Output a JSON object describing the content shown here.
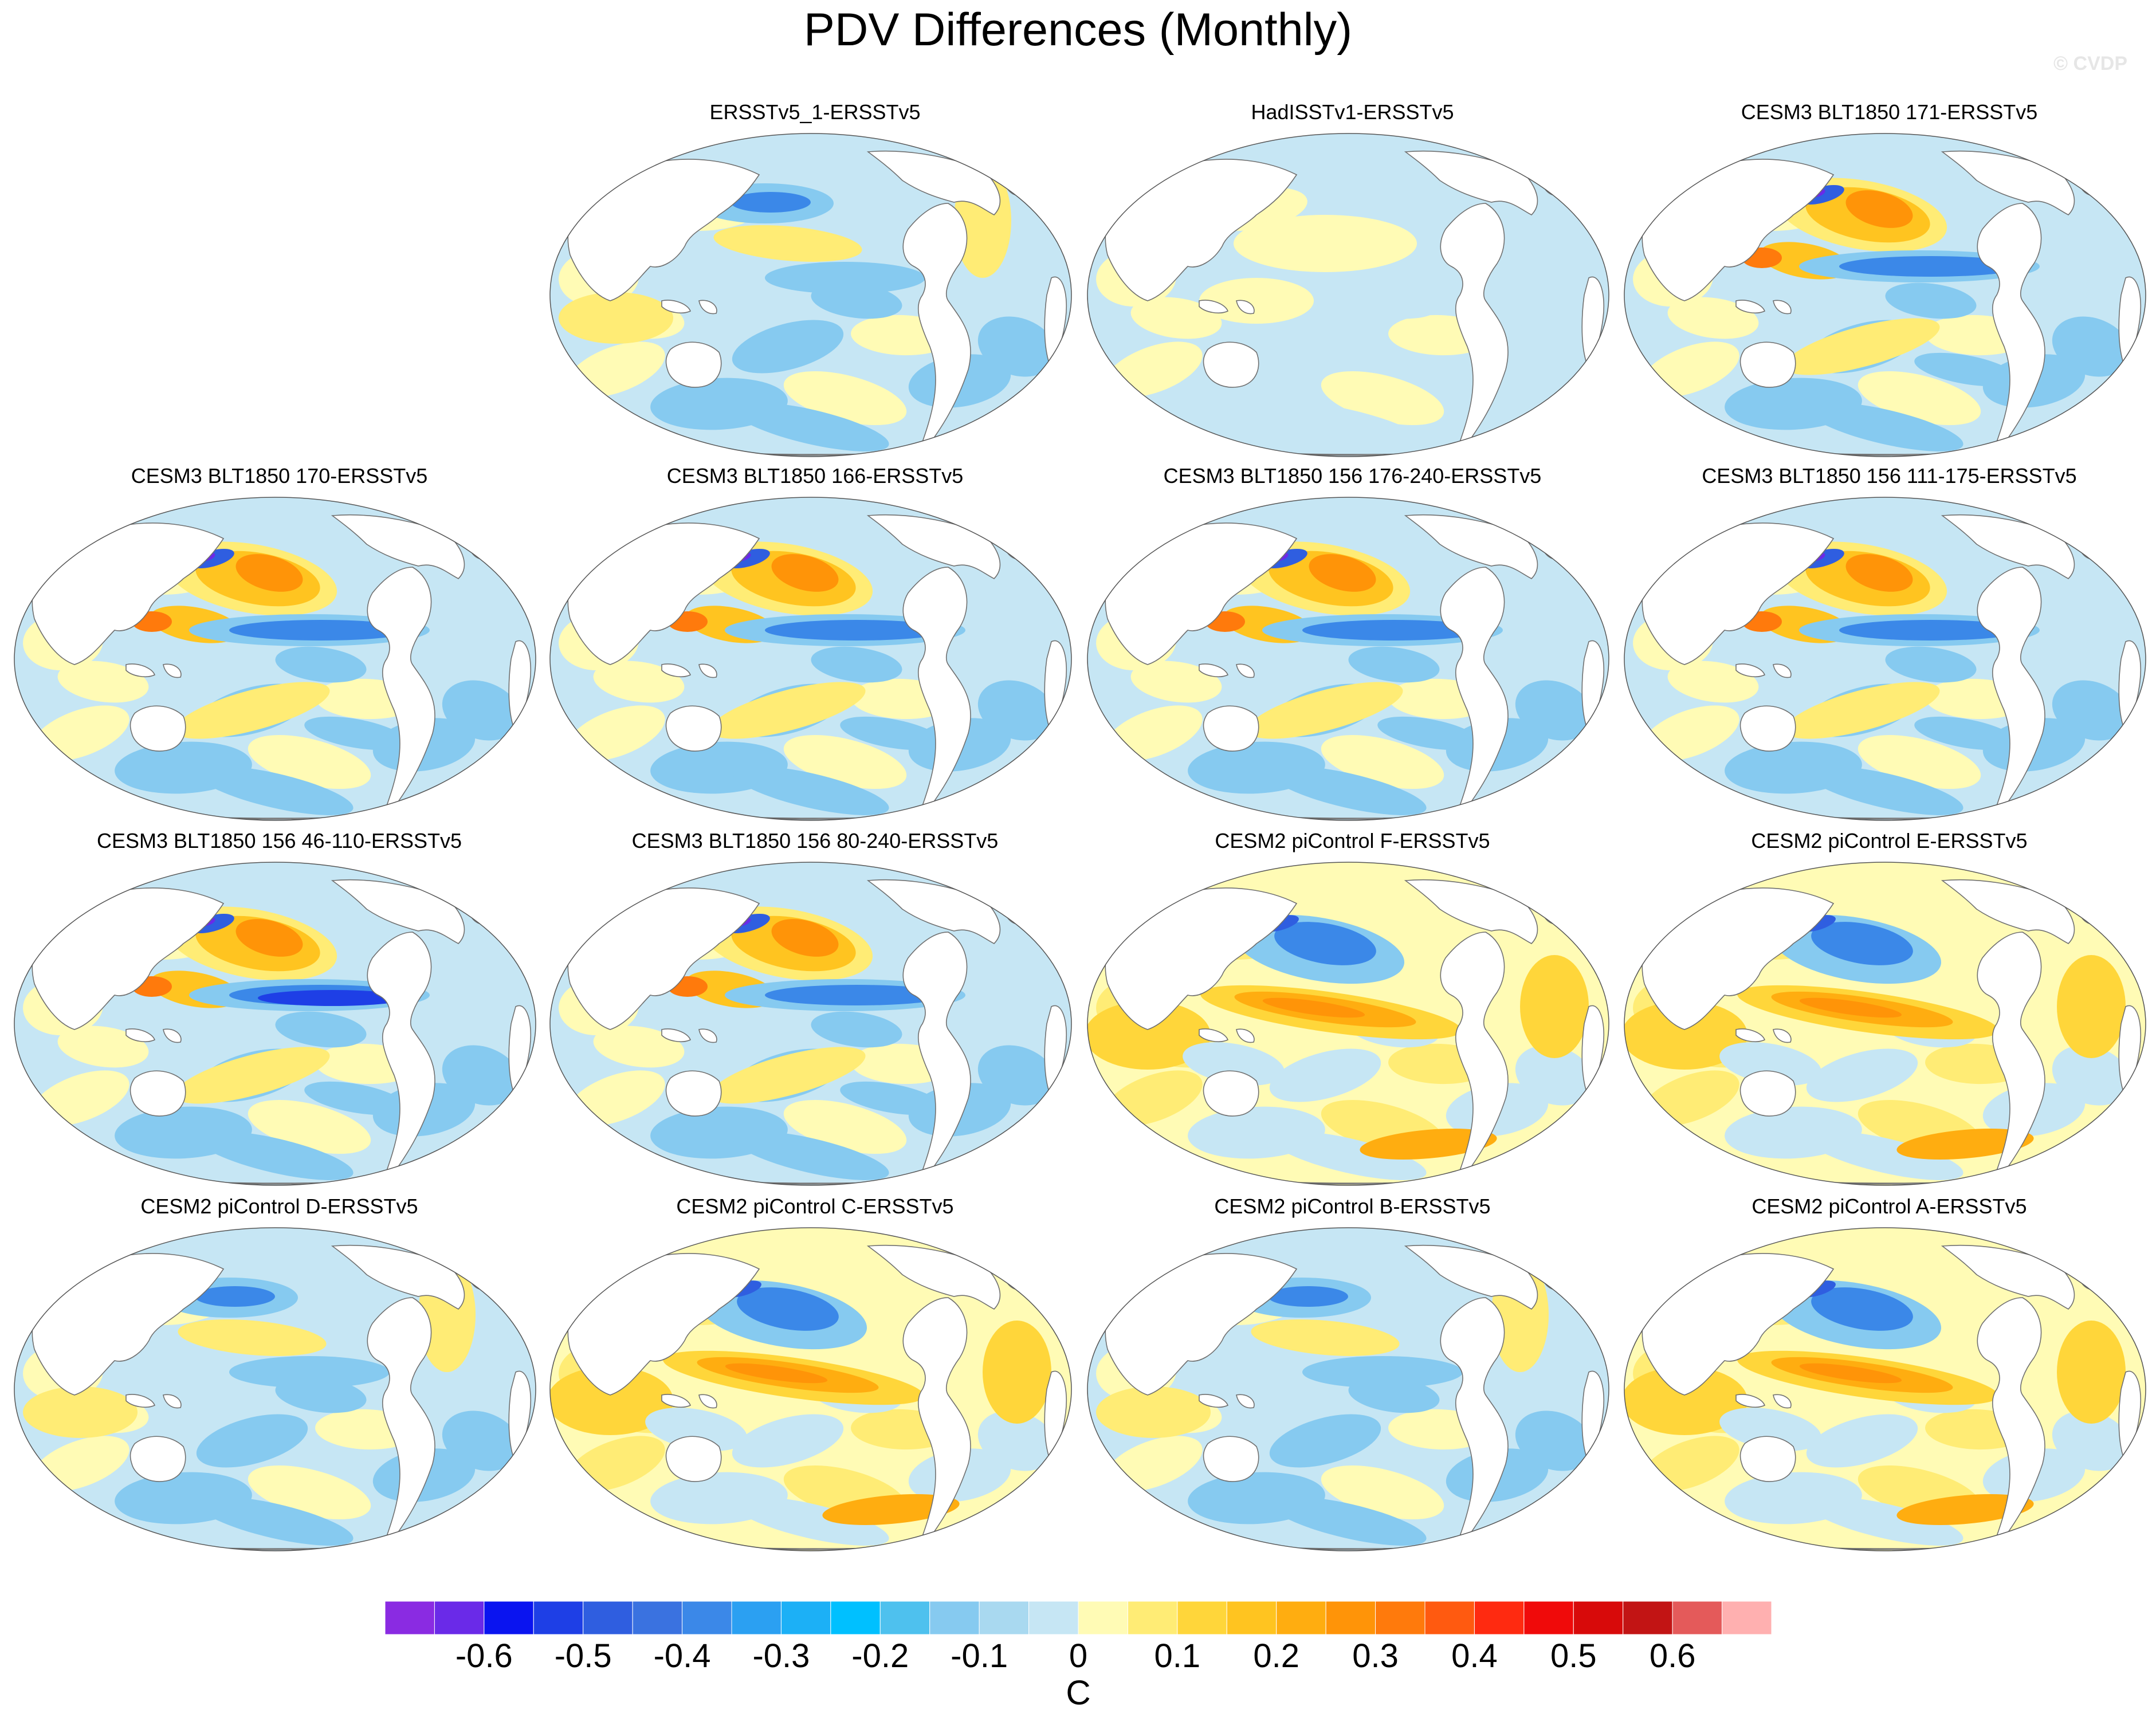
{
  "title": "PDV Differences (Monthly)",
  "watermark": "© CVDP",
  "panels": [
    {
      "title": "ERSSTv5_1-ERSSTv5",
      "row": 0,
      "col": 1,
      "pattern": "mixed"
    },
    {
      "title": "HadISSTv1-ERSSTv5",
      "row": 0,
      "col": 2,
      "pattern": "mixed-weak"
    },
    {
      "title": "CESM3 BLT1850 171-ERSSTv5",
      "row": 0,
      "col": 3,
      "pattern": "pdv-neg"
    },
    {
      "title": "CESM3 BLT1850 170-ERSSTv5",
      "row": 1,
      "col": 0,
      "pattern": "pdv-neg"
    },
    {
      "title": "CESM3 BLT1850 166-ERSSTv5",
      "row": 1,
      "col": 1,
      "pattern": "pdv-neg"
    },
    {
      "title": "CESM3 BLT1850 156 176-240-ERSSTv5",
      "row": 1,
      "col": 2,
      "pattern": "pdv-neg"
    },
    {
      "title": "CESM3 BLT1850 156 111-175-ERSSTv5",
      "row": 1,
      "col": 3,
      "pattern": "pdv-neg"
    },
    {
      "title": "CESM3 BLT1850 156 46-110-ERSSTv5",
      "row": 2,
      "col": 0,
      "pattern": "pdv-neg-strong"
    },
    {
      "title": "CESM3 BLT1850 156 80-240-ERSSTv5",
      "row": 2,
      "col": 1,
      "pattern": "pdv-neg"
    },
    {
      "title": "CESM2 piControl F-ERSSTv5",
      "row": 2,
      "col": 2,
      "pattern": "pdv-pos"
    },
    {
      "title": "CESM2 piControl E-ERSSTv5",
      "row": 2,
      "col": 3,
      "pattern": "pdv-pos"
    },
    {
      "title": "CESM2 piControl D-ERSSTv5",
      "row": 3,
      "col": 0,
      "pattern": "mixed"
    },
    {
      "title": "CESM2 piControl C-ERSSTv5",
      "row": 3,
      "col": 1,
      "pattern": "pdv-pos"
    },
    {
      "title": "CESM2 piControl B-ERSSTv5",
      "row": 3,
      "col": 2,
      "pattern": "mixed"
    },
    {
      "title": "CESM2 piControl A-ERSSTv5",
      "row": 3,
      "col": 3,
      "pattern": "pdv-pos"
    }
  ],
  "colorbar": {
    "colors": [
      "#8a2be2",
      "#6a2ae8",
      "#0a14f0",
      "#1e3fe6",
      "#2f5ee0",
      "#3a72e0",
      "#3b88e8",
      "#2ba0f2",
      "#1cb0f6",
      "#00c0ff",
      "#4ec1ee",
      "#86caf0",
      "#a9d9f0",
      "#c6e6f4",
      "#fffbb5",
      "#ffec75",
      "#ffd63a",
      "#ffc420",
      "#ffad10",
      "#ff9408",
      "#ff7a0c",
      "#ff5a10",
      "#ff2a10",
      "#f00a0a",
      "#d80a0a",
      "#c21414",
      "#e45a5a",
      "#ffb0b0"
    ],
    "tick_labels": [
      "-0.6",
      "-0.5",
      "-0.4",
      "-0.3",
      "-0.2",
      "-0.1",
      "0",
      "0.1",
      "0.2",
      "0.3",
      "0.4",
      "0.5",
      "0.6"
    ],
    "units": "C"
  }
}
